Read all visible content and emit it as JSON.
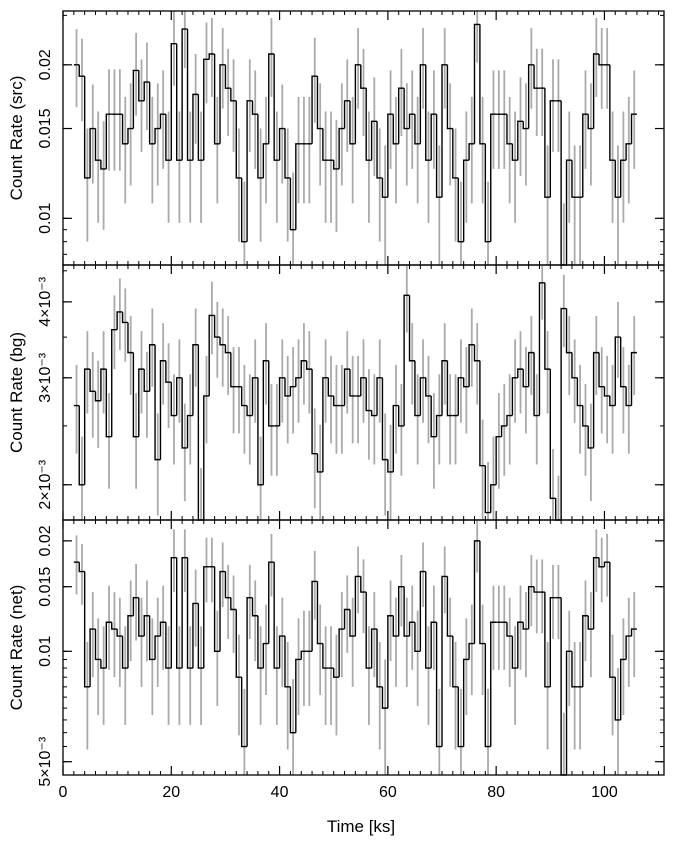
{
  "chart_data": {
    "type": "line",
    "xlabel": "Time [ks]",
    "xlim": [
      0,
      111
    ],
    "x_ticks": [
      {
        "value": 0,
        "label": "0"
      },
      {
        "value": 20,
        "label": "20"
      },
      {
        "value": 40,
        "label": "40"
      },
      {
        "value": 60,
        "label": "60"
      },
      {
        "value": 80,
        "label": "80"
      },
      {
        "value": 100,
        "label": "100"
      }
    ],
    "style": {
      "step_color": "#000000",
      "errorbar_color": "#aaaaaa",
      "frame_color": "#000000"
    },
    "bin_width_ks": 1.0,
    "x_start_ks": 2.0,
    "panels": [
      {
        "ylabel": "Count Rate (src)",
        "scale": "log",
        "ylim": [
          0.0081,
          0.0255
        ],
        "y_ticks": [
          {
            "value": 0.01,
            "label": "0.01"
          },
          {
            "value": 0.015,
            "label": "0.015"
          },
          {
            "value": 0.02,
            "label": "0.02"
          }
        ],
        "values": [
          0.02,
          0.019,
          0.012,
          0.015,
          0.013,
          0.0125,
          0.016,
          0.016,
          0.016,
          0.014,
          0.015,
          0.0195,
          0.017,
          0.0185,
          0.014,
          0.015,
          0.016,
          0.013,
          0.022,
          0.013,
          0.0235,
          0.013,
          0.0175,
          0.013,
          0.0205,
          0.021,
          0.014,
          0.02,
          0.018,
          0.017,
          0.012,
          0.009,
          0.017,
          0.016,
          0.012,
          0.014,
          0.021,
          0.013,
          0.015,
          0.012,
          0.0095,
          0.014,
          0.014,
          0.014,
          0.019,
          0.015,
          0.013,
          0.013,
          0.0125,
          0.015,
          0.017,
          0.014,
          0.02,
          0.018,
          0.013,
          0.0155,
          0.012,
          0.011,
          0.016,
          0.014,
          0.018,
          0.015,
          0.016,
          0.014,
          0.02,
          0.013,
          0.016,
          0.011,
          0.02,
          0.015,
          0.012,
          0.009,
          0.013,
          0.014,
          0.024,
          0.014,
          0.009,
          0.016,
          0.016,
          0.016,
          0.014,
          0.013,
          0.0155,
          0.015,
          0.02,
          0.018,
          0.018,
          0.011,
          0.017,
          0.017,
          0.008,
          0.013,
          0.011,
          0.011,
          0.016,
          0.015,
          0.021,
          0.02,
          0.02,
          0.013,
          0.011,
          0.013,
          0.014,
          0.016
        ],
        "errors": [
          0.0035,
          0.0035,
          0.003,
          0.0033,
          0.0032,
          0.003,
          0.0036,
          0.0036,
          0.0036,
          0.0033,
          0.0034,
          0.0036,
          0.0035,
          0.0036,
          0.0033,
          0.0034,
          0.0035,
          0.0032,
          0.0038,
          0.0032,
          0.0038,
          0.0032,
          0.0035,
          0.0032,
          0.0037,
          0.0037,
          0.0033,
          0.0036,
          0.0035,
          0.0035,
          0.003,
          0.0028,
          0.0035,
          0.0035,
          0.003,
          0.0033,
          0.0037,
          0.0032,
          0.0033,
          0.003,
          0.0028,
          0.0033,
          0.0033,
          0.0033,
          0.0036,
          0.0034,
          0.0032,
          0.0032,
          0.0031,
          0.0034,
          0.0035,
          0.0033,
          0.0036,
          0.0035,
          0.0032,
          0.0034,
          0.003,
          0.0029,
          0.0035,
          0.0033,
          0.0035,
          0.0034,
          0.0035,
          0.0033,
          0.0036,
          0.0032,
          0.0035,
          0.0029,
          0.0036,
          0.0034,
          0.003,
          0.0028,
          0.0032,
          0.0033,
          0.0038,
          0.0033,
          0.0028,
          0.0035,
          0.0035,
          0.0035,
          0.0033,
          0.0032,
          0.0034,
          0.0034,
          0.0036,
          0.0035,
          0.0035,
          0.0029,
          0.0035,
          0.0035,
          0.0027,
          0.0032,
          0.0029,
          0.0029,
          0.0035,
          0.0034,
          0.0037,
          0.0036,
          0.0036,
          0.0032,
          0.0029,
          0.0032,
          0.0033,
          0.0035
        ]
      },
      {
        "ylabel": "Count Rate (bg)",
        "scale": "log",
        "ylim": [
          0.00175,
          0.0046
        ],
        "y_ticks": [
          {
            "value": 0.002,
            "label": "2×10⁻³"
          },
          {
            "value": 0.003,
            "label": "3×10⁻³"
          },
          {
            "value": 0.004,
            "label": "4×10⁻³"
          }
        ],
        "values": [
          0.0027,
          0.002,
          0.0031,
          0.00285,
          0.00275,
          0.0031,
          0.0024,
          0.0036,
          0.00385,
          0.0037,
          0.0033,
          0.0024,
          0.0031,
          0.00285,
          0.0034,
          0.0022,
          0.0032,
          0.00295,
          0.0026,
          0.003,
          0.0023,
          0.0026,
          0.0034,
          0.00175,
          0.0028,
          0.0038,
          0.0035,
          0.0034,
          0.0033,
          0.0029,
          0.0029,
          0.0027,
          0.0026,
          0.003,
          0.002,
          0.0032,
          0.0025,
          0.0025,
          0.003,
          0.0028,
          0.0029,
          0.003,
          0.0032,
          0.0031,
          0.00225,
          0.0021,
          0.003,
          0.0028,
          0.0027,
          0.0027,
          0.0031,
          0.0028,
          0.0028,
          0.003,
          0.00265,
          0.0026,
          0.003,
          0.0022,
          0.0021,
          0.0027,
          0.0025,
          0.0041,
          0.0032,
          0.0026,
          0.003,
          0.0028,
          0.0024,
          0.0026,
          0.0032,
          0.0026,
          0.0026,
          0.003,
          0.0029,
          0.0034,
          0.0032,
          0.00215,
          0.0018,
          0.002,
          0.0024,
          0.0025,
          0.0026,
          0.003,
          0.0031,
          0.0029,
          0.0033,
          0.0026,
          0.0043,
          0.0031,
          0.0019,
          0.0017,
          0.0039,
          0.0033,
          0.003,
          0.0027,
          0.0025,
          0.0023,
          0.0033,
          0.0029,
          0.0028,
          0.0027,
          0.0035,
          0.0029,
          0.0027,
          0.0033
        ],
        "errors": [
          0.00045,
          0.0004,
          0.00048,
          0.00046,
          0.00045,
          0.00048,
          0.00043,
          0.0005,
          0.00052,
          0.00051,
          0.00049,
          0.00043,
          0.00048,
          0.00046,
          0.0005,
          0.00042,
          0.00049,
          0.00047,
          0.00044,
          0.00047,
          0.00042,
          0.00044,
          0.0005,
          0.00038,
          0.00046,
          0.00052,
          0.0005,
          0.0005,
          0.00049,
          0.00047,
          0.00047,
          0.00045,
          0.00044,
          0.00047,
          0.0004,
          0.00049,
          0.00043,
          0.00043,
          0.00047,
          0.00046,
          0.00047,
          0.00047,
          0.00049,
          0.00048,
          0.00042,
          0.00041,
          0.00047,
          0.00046,
          0.00045,
          0.00045,
          0.00048,
          0.00046,
          0.00046,
          0.00047,
          0.00045,
          0.00044,
          0.00047,
          0.00042,
          0.00041,
          0.00045,
          0.00043,
          0.00054,
          0.00049,
          0.00044,
          0.00047,
          0.00046,
          0.00043,
          0.00044,
          0.00049,
          0.00044,
          0.00044,
          0.00047,
          0.00047,
          0.0005,
          0.00049,
          0.00041,
          0.00038,
          0.0004,
          0.00043,
          0.00043,
          0.00044,
          0.00047,
          0.00048,
          0.00047,
          0.00049,
          0.00044,
          0.00056,
          0.00048,
          0.00039,
          0.00037,
          0.00053,
          0.00049,
          0.00047,
          0.00045,
          0.00043,
          0.00042,
          0.00049,
          0.00047,
          0.00046,
          0.00045,
          0.0005,
          0.00047,
          0.00045,
          0.00049
        ]
      },
      {
        "ylabel": "Count Rate (net)",
        "scale": "log",
        "ylim": [
          0.0046,
          0.0228
        ],
        "y_ticks": [
          {
            "value": 0.005,
            "label": "5×10⁻³"
          },
          {
            "value": 0.01,
            "label": "0.01"
          },
          {
            "value": 0.015,
            "label": "0.015"
          },
          {
            "value": 0.02,
            "label": "0.02"
          }
        ],
        "values": [
          0.0175,
          0.0165,
          0.008,
          0.0115,
          0.0095,
          0.009,
          0.012,
          0.0115,
          0.011,
          0.009,
          0.0125,
          0.014,
          0.011,
          0.0125,
          0.0095,
          0.011,
          0.012,
          0.009,
          0.018,
          0.009,
          0.018,
          0.009,
          0.0135,
          0.009,
          0.017,
          0.017,
          0.01,
          0.0165,
          0.014,
          0.013,
          0.0085,
          0.0055,
          0.014,
          0.0125,
          0.009,
          0.0105,
          0.0175,
          0.009,
          0.011,
          0.008,
          0.006,
          0.0095,
          0.01,
          0.01,
          0.0155,
          0.0105,
          0.009,
          0.009,
          0.0085,
          0.0115,
          0.013,
          0.011,
          0.016,
          0.0145,
          0.009,
          0.0115,
          0.008,
          0.007,
          0.0125,
          0.011,
          0.015,
          0.011,
          0.012,
          0.01,
          0.0165,
          0.009,
          0.012,
          0.0055,
          0.016,
          0.011,
          0.008,
          0.0055,
          0.0095,
          0.0105,
          0.02,
          0.0105,
          0.0055,
          0.012,
          0.012,
          0.012,
          0.011,
          0.009,
          0.012,
          0.0115,
          0.015,
          0.0145,
          0.0145,
          0.008,
          0.014,
          0.014,
          0.0045,
          0.01,
          0.008,
          0.008,
          0.0125,
          0.0115,
          0.018,
          0.017,
          0.0175,
          0.0085,
          0.0065,
          0.0095,
          0.011,
          0.0115
        ],
        "errors": [
          0.0032,
          0.0031,
          0.0026,
          0.003,
          0.0028,
          0.0027,
          0.0031,
          0.003,
          0.003,
          0.0027,
          0.0031,
          0.0033,
          0.003,
          0.0031,
          0.0028,
          0.003,
          0.0031,
          0.0027,
          0.0035,
          0.0027,
          0.0035,
          0.0027,
          0.0032,
          0.0027,
          0.0034,
          0.0034,
          0.0029,
          0.0033,
          0.0032,
          0.0031,
          0.0026,
          0.0024,
          0.0032,
          0.0031,
          0.0027,
          0.0029,
          0.0034,
          0.0027,
          0.003,
          0.0026,
          0.0024,
          0.0028,
          0.0029,
          0.0029,
          0.0033,
          0.0029,
          0.0027,
          0.0027,
          0.0026,
          0.003,
          0.0031,
          0.003,
          0.0033,
          0.0033,
          0.0027,
          0.003,
          0.0026,
          0.0025,
          0.0031,
          0.003,
          0.0033,
          0.003,
          0.0031,
          0.0029,
          0.0033,
          0.0027,
          0.0031,
          0.0024,
          0.0033,
          0.003,
          0.0026,
          0.0024,
          0.0028,
          0.0029,
          0.0036,
          0.0029,
          0.0024,
          0.0031,
          0.0031,
          0.0031,
          0.003,
          0.0027,
          0.0031,
          0.003,
          0.0033,
          0.0033,
          0.0033,
          0.0026,
          0.0032,
          0.0032,
          0.0023,
          0.0029,
          0.0026,
          0.0026,
          0.0031,
          0.003,
          0.0035,
          0.0034,
          0.0034,
          0.0026,
          0.0025,
          0.0028,
          0.003,
          0.003
        ]
      }
    ]
  }
}
